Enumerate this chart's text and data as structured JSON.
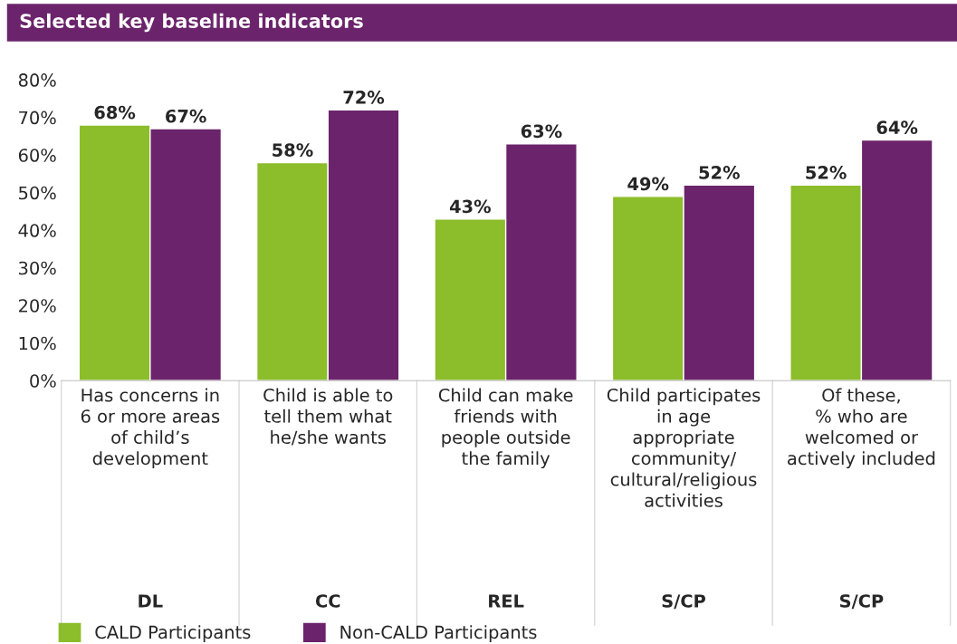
{
  "chart_data": {
    "type": "bar",
    "title": "Selected key baseline indicators",
    "categories": [
      "Has concerns in\n6 or more areas\nof child’s\ndevelopment",
      "Child is able to\ntell them what\nhe/she wants",
      "Child can make\nfriends with\npeople outside\nthe family",
      "Child participates\nin age\nappropriate\ncommunity/\ncultural/religious\nactivities",
      "Of these,\n% who are\nwelcomed or\nactively included"
    ],
    "series": [
      {
        "name": "CALD Participants",
        "color": "#8cbd2a",
        "values": [
          68,
          58,
          43,
          49,
          52
        ],
        "value_labels": [
          "68%",
          "58%",
          "43%",
          "49%",
          "52%"
        ]
      },
      {
        "name": "Non-CALD Participants",
        "color": "#6b246b",
        "values": [
          67,
          72,
          63,
          52,
          64
        ],
        "value_labels": [
          "67%",
          "72%",
          "63%",
          "52%",
          "64%"
        ]
      }
    ],
    "annotations": [
      "DL",
      "CC",
      "REL",
      "S/CP",
      "S/CP"
    ],
    "ylim": [
      0,
      80
    ],
    "yticks": [
      {
        "value": 0,
        "label": "0%"
      },
      {
        "value": 10,
        "label": "10%"
      },
      {
        "value": 20,
        "label": "20%"
      },
      {
        "value": 30,
        "label": "30%"
      },
      {
        "value": 40,
        "label": "40%"
      },
      {
        "value": 50,
        "label": "50%"
      },
      {
        "value": 60,
        "label": "60%"
      },
      {
        "value": 70,
        "label": "70%"
      },
      {
        "value": 80,
        "label": "80%"
      }
    ],
    "grid": false,
    "legend": "bottom left"
  }
}
